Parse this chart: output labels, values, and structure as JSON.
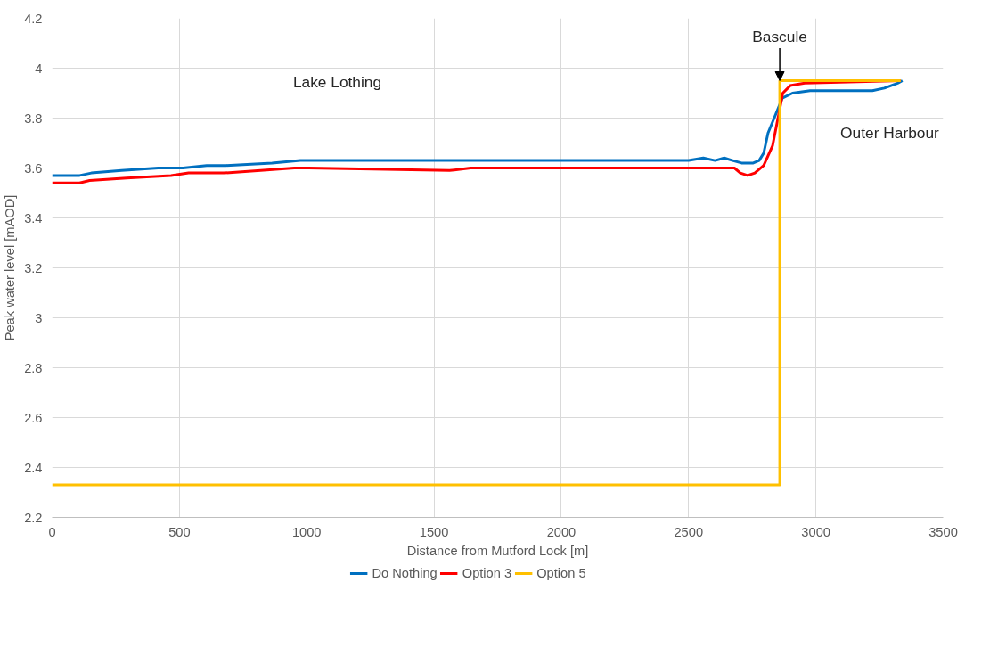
{
  "chart_data": {
    "type": "line",
    "xlabel": "Distance from Mutford Lock [m]",
    "ylabel": "Peak water level [mAOD]",
    "xlim": [
      0,
      3500
    ],
    "xticks": [
      0,
      500,
      1000,
      1500,
      2000,
      2500,
      3000,
      3500
    ],
    "ylim": [
      2.2,
      4.2
    ],
    "yticks": [
      2.2,
      2.4,
      2.6,
      2.8,
      3,
      3.2,
      3.4,
      3.6,
      3.8,
      4,
      4.2
    ],
    "grid": true,
    "legend": "bottom",
    "marker": "none",
    "line_style": "solid",
    "series": [
      {
        "name": "Do Nothing",
        "color": "#0070c0",
        "x": [
          0,
          108,
          154,
          273,
          417,
          514,
          607,
          683,
          864,
          975,
          2500,
          2558,
          2604,
          2640,
          2673,
          2708,
          2754,
          2777,
          2795,
          2812,
          2840,
          2868,
          2908,
          2977,
          3222,
          3269,
          3321,
          3340
        ],
        "values": [
          3.57,
          3.57,
          3.58,
          3.59,
          3.6,
          3.6,
          3.61,
          3.61,
          3.62,
          3.63,
          3.63,
          3.64,
          3.63,
          3.64,
          3.63,
          3.62,
          3.62,
          3.63,
          3.66,
          3.74,
          3.81,
          3.88,
          3.9,
          3.91,
          3.91,
          3.92,
          3.94,
          3.95
        ]
      },
      {
        "name": "Option 3",
        "color": "#ff0000",
        "x": [
          0,
          108,
          147,
          293,
          467,
          536,
          674,
          819,
          951,
          1007,
          1561,
          1644,
          2300,
          2680,
          2703,
          2732,
          2760,
          2795,
          2830,
          2853,
          2870,
          2899,
          2956,
          3333
        ],
        "values": [
          3.54,
          3.54,
          3.55,
          3.56,
          3.57,
          3.58,
          3.58,
          3.59,
          3.6,
          3.6,
          3.59,
          3.6,
          3.6,
          3.6,
          3.58,
          3.57,
          3.58,
          3.61,
          3.69,
          3.81,
          3.9,
          3.93,
          3.94,
          3.95
        ]
      },
      {
        "name": "Option 5",
        "color": "#ffc000",
        "x": [
          0,
          2858,
          2858,
          3333
        ],
        "values": [
          2.33,
          2.33,
          3.95,
          3.95
        ]
      }
    ],
    "annotations": [
      "Lake Lothing",
      {
        "text": "Bascule",
        "x": 2858,
        "y": 3.95
      },
      "Outer Harbour"
    ]
  }
}
